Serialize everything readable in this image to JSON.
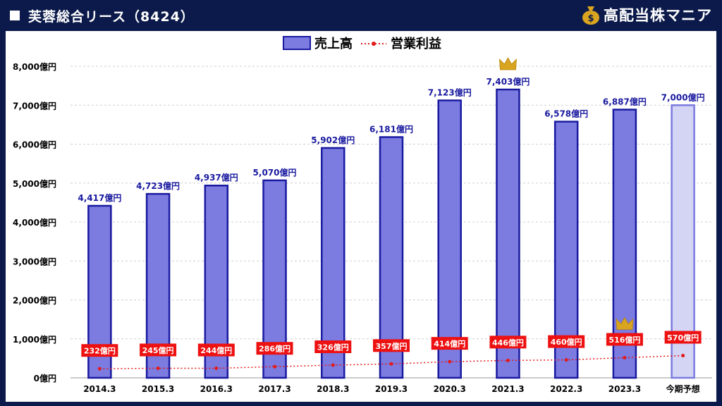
{
  "header": {
    "title": "芙蓉総合リース（8424）",
    "brand": "高配当株マニア",
    "brand_icon": "money-bag-icon"
  },
  "colors": {
    "bar_fill": "#7b7be0",
    "bar_stroke": "#1a1aa0",
    "forecast_fill": "#d4d4f5",
    "forecast_stroke": "#7b7be0",
    "line": "#e21b1b",
    "label_blue": "#1a1aa0",
    "label_red_bg": "#ee1111",
    "crown": "#d9a420",
    "header_bg": "#0b1a4a"
  },
  "chart_data": {
    "type": "bar",
    "categories": [
      "2014.3",
      "2015.3",
      "2016.3",
      "2017.3",
      "2018.3",
      "2019.3",
      "2020.3",
      "2021.3",
      "2022.3",
      "2023.3",
      "今期予想"
    ],
    "series": [
      {
        "name": "売上高",
        "type": "bar",
        "values": [
          4417,
          4723,
          4937,
          5070,
          5902,
          6181,
          7123,
          7403,
          6578,
          6887,
          7000
        ],
        "labels": [
          "4,417億円",
          "4,723億円",
          "4,937億円",
          "5,070億円",
          "5,902億円",
          "6,181億円",
          "7,123億円",
          "7,403億円",
          "6,578億円",
          "6,887億円",
          "7,000億円"
        ]
      },
      {
        "name": "営業利益",
        "type": "line",
        "values": [
          232,
          245,
          244,
          286,
          326,
          357,
          414,
          446,
          460,
          516,
          570
        ],
        "labels": [
          "232億円",
          "245億円",
          "244億円",
          "286億円",
          "326億円",
          "357億円",
          "414億円",
          "446億円",
          "460億円",
          "516億円",
          "570億円"
        ]
      }
    ],
    "forecast_index": 10,
    "crowns": [
      {
        "series": 0,
        "index": 7
      },
      {
        "series": 1,
        "index": 9
      }
    ],
    "ylim": [
      0,
      8000
    ],
    "yticks": [
      0,
      1000,
      2000,
      3000,
      4000,
      5000,
      6000,
      7000,
      8000
    ],
    "ytick_labels": [
      "0億円",
      "1,000億円",
      "2,000億円",
      "3,000億円",
      "4,000億円",
      "5,000億円",
      "6,000億円",
      "7,000億円",
      "8,000億円"
    ],
    "legend_position": "top-center",
    "grid": true
  }
}
